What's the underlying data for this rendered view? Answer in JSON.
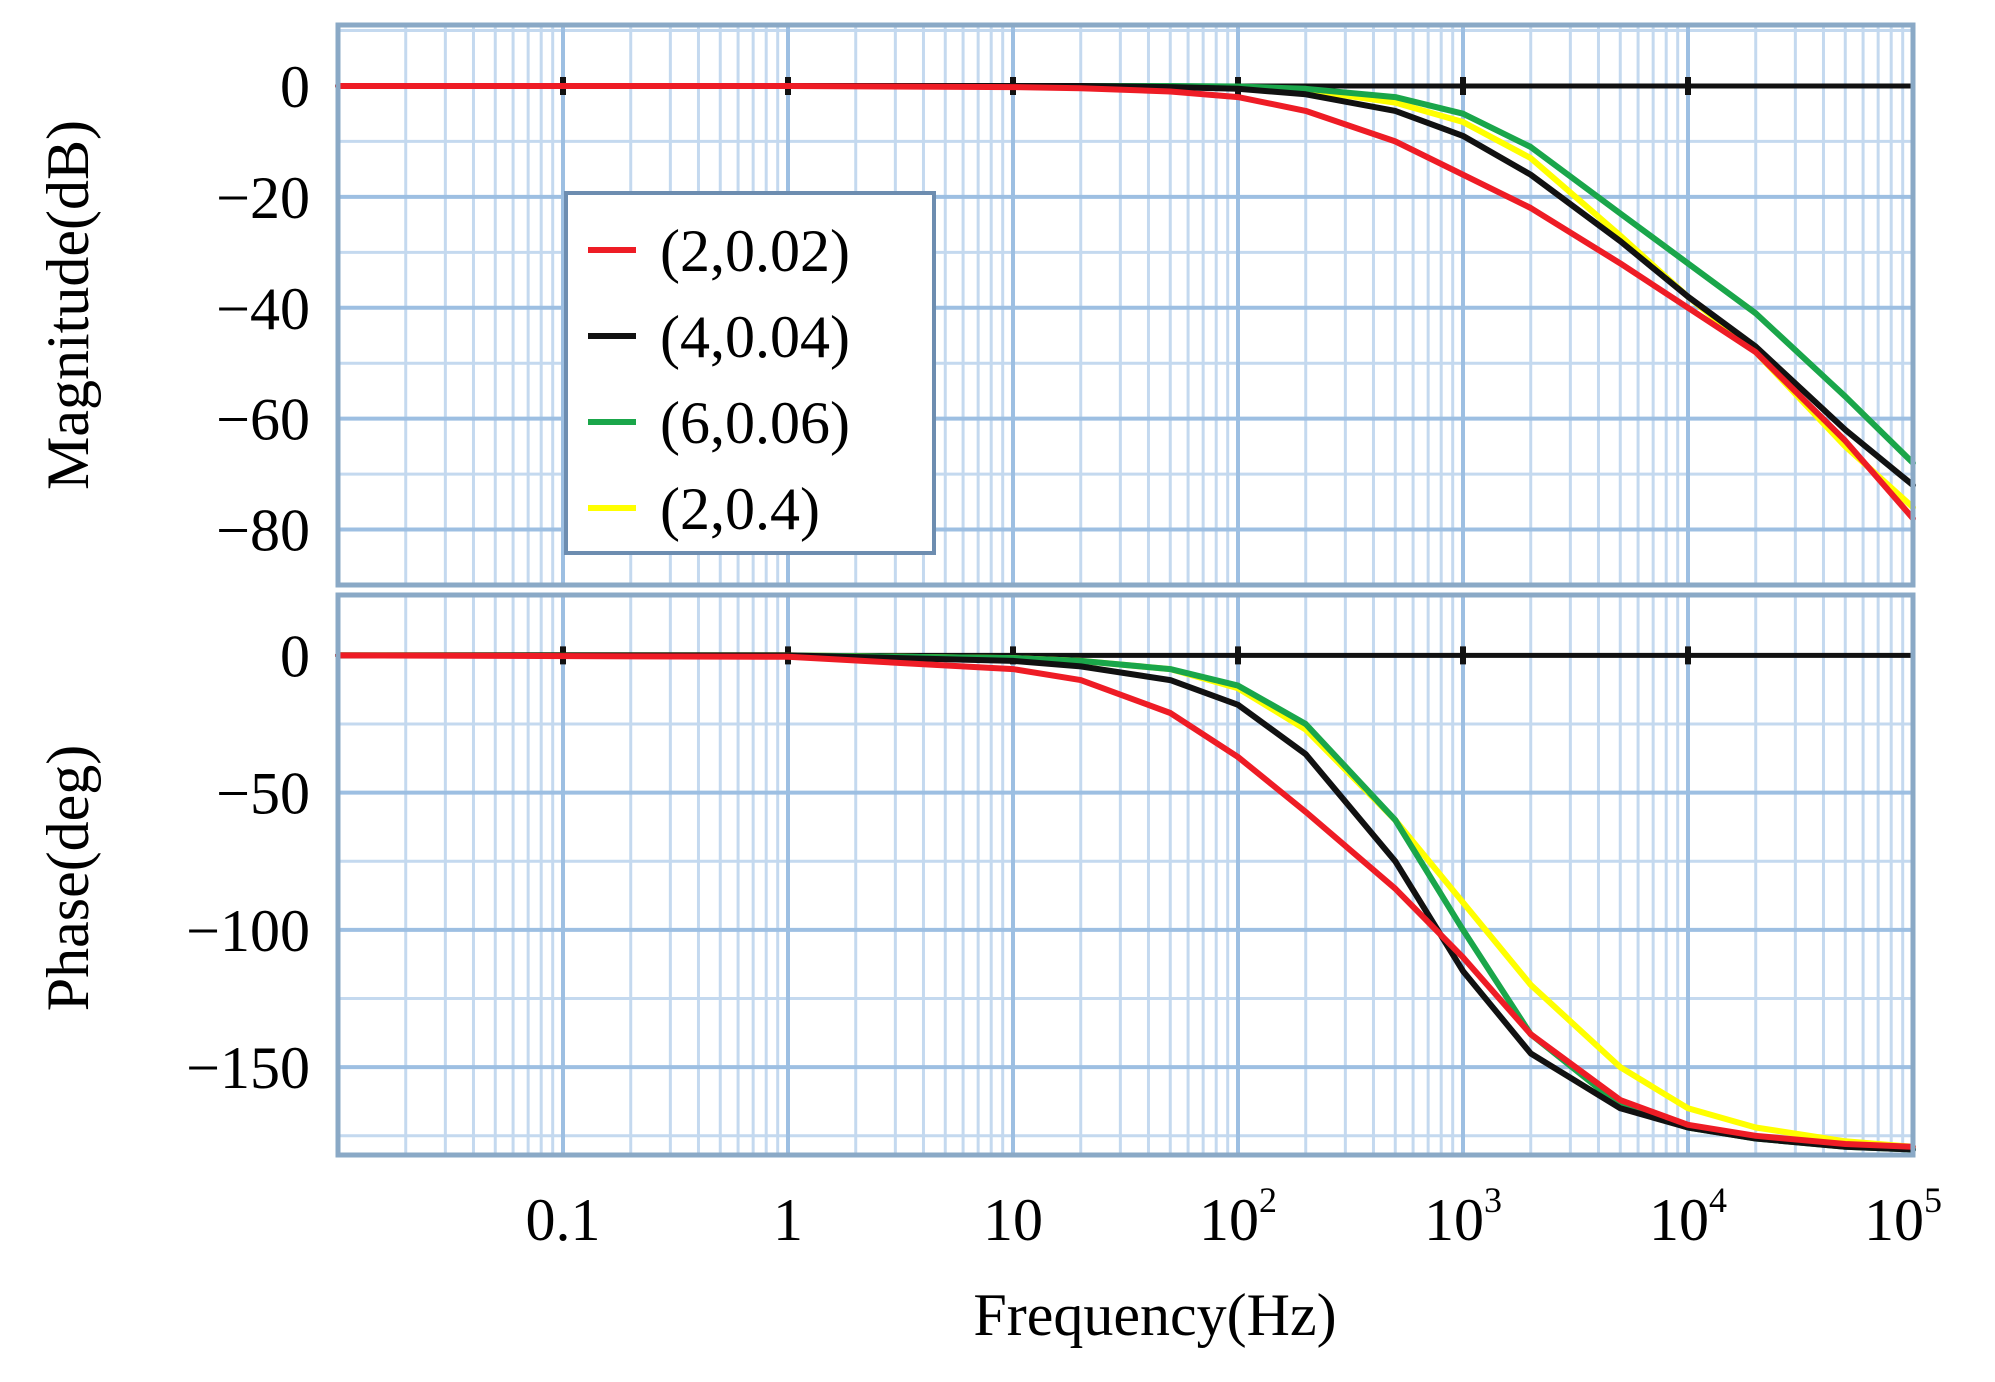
{
  "chart_data": {
    "type": "line",
    "subtype": "bode",
    "x_scale": "log",
    "xlim": [
      0.01,
      100000
    ],
    "xlabel": "Frequency(Hz)",
    "x_ticks": [
      {
        "value": 0.1,
        "label": "0.1",
        "sup": ""
      },
      {
        "value": 1,
        "label": "1",
        "sup": ""
      },
      {
        "value": 10,
        "label": "10",
        "sup": ""
      },
      {
        "value": 100,
        "label": "10",
        "sup": "2"
      },
      {
        "value": 1000,
        "label": "10",
        "sup": "3"
      },
      {
        "value": 10000,
        "label": "10",
        "sup": "4"
      },
      {
        "value": 100000,
        "label": "10",
        "sup": "5"
      }
    ],
    "grid": true,
    "legend_position": "left, inside magnitude panel",
    "panels": [
      {
        "id": "magnitude",
        "ylabel": "Magnitude(dB)",
        "ylim": [
          -90,
          11
        ],
        "y_ticks": [
          {
            "value": 0,
            "label": "0"
          },
          {
            "value": -20,
            "label": "−20"
          },
          {
            "value": -40,
            "label": "−40"
          },
          {
            "value": -60,
            "label": "−60"
          },
          {
            "value": -80,
            "label": "−80"
          }
        ],
        "reference_line": 0
      },
      {
        "id": "phase",
        "ylabel": "Phase(deg)",
        "ylim": [
          -182,
          22
        ],
        "y_ticks": [
          {
            "value": 0,
            "label": "0"
          },
          {
            "value": -50,
            "label": "−50"
          },
          {
            "value": -100,
            "label": "−100"
          },
          {
            "value": -150,
            "label": "−150"
          }
        ],
        "reference_line": 0
      }
    ],
    "x": [
      0.01,
      1,
      10,
      20,
      50,
      100,
      200,
      500,
      1000,
      2000,
      5000,
      10000,
      20000,
      50000,
      100000
    ],
    "series": [
      {
        "name": "(2,0.02)",
        "color": "#ee1c25",
        "magnitude": [
          0,
          0,
          -0.2,
          -0.4,
          -1,
          -2,
          -4.5,
          -10,
          -16,
          -22,
          -32,
          -40,
          -48,
          -64,
          -78
        ],
        "phase": [
          0,
          -0.5,
          -5,
          -9,
          -21,
          -37,
          -57,
          -85,
          -110,
          -138,
          -162,
          -171,
          -175,
          -178,
          -179
        ]
      },
      {
        "name": "(4,0.04)",
        "color": "#111111",
        "magnitude": [
          0,
          0,
          0,
          0,
          -0.2,
          -0.5,
          -1.5,
          -4.5,
          -9,
          -16,
          -28,
          -38,
          -47,
          -62,
          -72
        ],
        "phase": [
          0,
          0,
          -2,
          -4,
          -9,
          -18,
          -36,
          -75,
          -115,
          -145,
          -165,
          -172,
          -176,
          -179,
          -180
        ]
      },
      {
        "name": "(6,0.06)",
        "color": "#1aa64a",
        "magnitude": [
          0,
          0,
          0,
          0,
          0,
          -0.1,
          -0.5,
          -2,
          -5,
          -11,
          -23,
          -32,
          -41,
          -56,
          -68
        ],
        "phase": [
          0,
          0,
          -1,
          -2,
          -5,
          -11,
          -25,
          -60,
          -100,
          -138,
          -164,
          -172,
          -176,
          -179,
          -180
        ]
      },
      {
        "name": "(2,0.4)",
        "color": "#ffff00",
        "magnitude": [
          0,
          0,
          0,
          0,
          -0.1,
          -0.2,
          -0.7,
          -3,
          -6.5,
          -13,
          -27,
          -38,
          -48,
          -65,
          -76
        ],
        "phase": [
          0,
          0,
          -1,
          -2,
          -5,
          -12,
          -27,
          -60,
          -90,
          -120,
          -150,
          -165,
          -172,
          -177,
          -179
        ]
      }
    ]
  }
}
